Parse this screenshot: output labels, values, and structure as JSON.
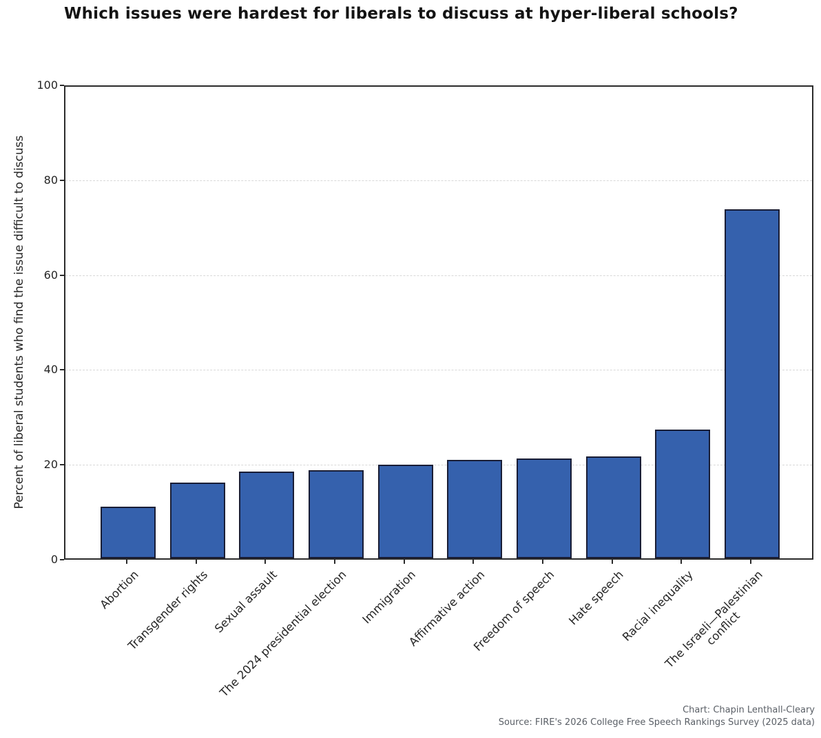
{
  "chart_data": {
    "type": "bar",
    "title": "Which issues were hardest for liberals to discuss at hyper-liberal schools?",
    "xlabel": "",
    "ylabel": "Percent of liberal students who find the issue difficult to discuss",
    "categories": [
      "Abortion",
      "Transgender rights",
      "Sexual assault",
      "The 2024 presidential election",
      "Immigration",
      "Affirmative action",
      "Freedom of speech",
      "Hate speech",
      "Racial inequality",
      "The Israeli—Palestinian\nconflict"
    ],
    "values": [
      10.9,
      15.9,
      18.3,
      18.6,
      19.8,
      20.8,
      21.0,
      21.5,
      27.2,
      73.6
    ],
    "ylim": [
      0,
      100
    ],
    "yticks": [
      0,
      20,
      40,
      60,
      80,
      100
    ],
    "grid": "horizontal-dashed",
    "legend": "none",
    "bar_width_frac": 0.8,
    "colors": {
      "bar_fill": "#3561ad",
      "bar_edge": "#191d35",
      "grid": "#d8d8d8",
      "spine": "#2b2b2b",
      "title": "#141414",
      "tick_label": "#262626",
      "credit": "#5a5f66"
    },
    "annotations": [
      "Chart: Chapin Lenthall-Cleary",
      "Source: FIRE's 2026 College Free Speech Rankings Survey (2025 data)"
    ]
  }
}
